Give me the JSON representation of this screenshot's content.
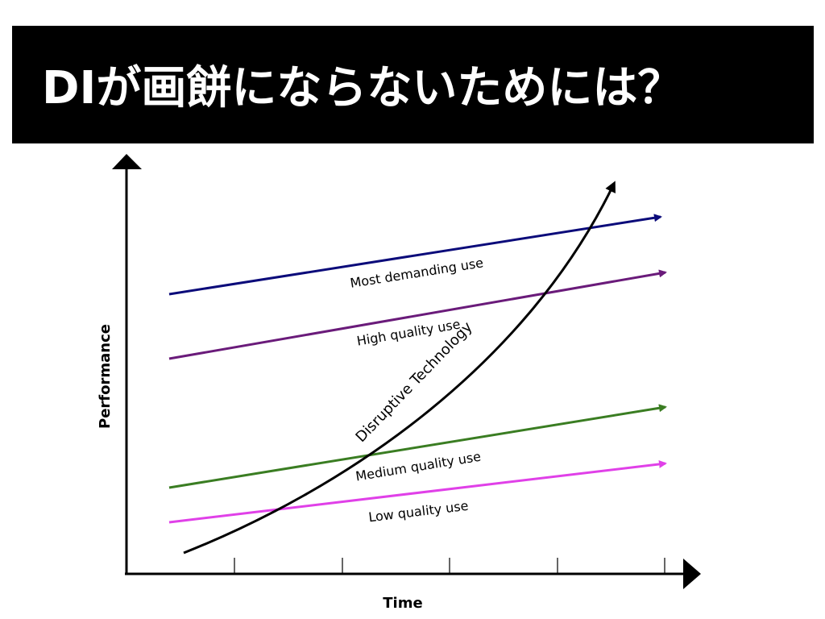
{
  "header": {
    "title": "DIが画餅にならないためには？"
  },
  "diagram": {
    "y_axis_label": "Performance",
    "x_axis_label": "Time",
    "lines": [
      {
        "label": "Most demanding use"
      },
      {
        "label": "High quality use"
      },
      {
        "label": "Medium quality use"
      },
      {
        "label": "Low quality use"
      }
    ],
    "curve_label": "Disruptive Technology"
  }
}
